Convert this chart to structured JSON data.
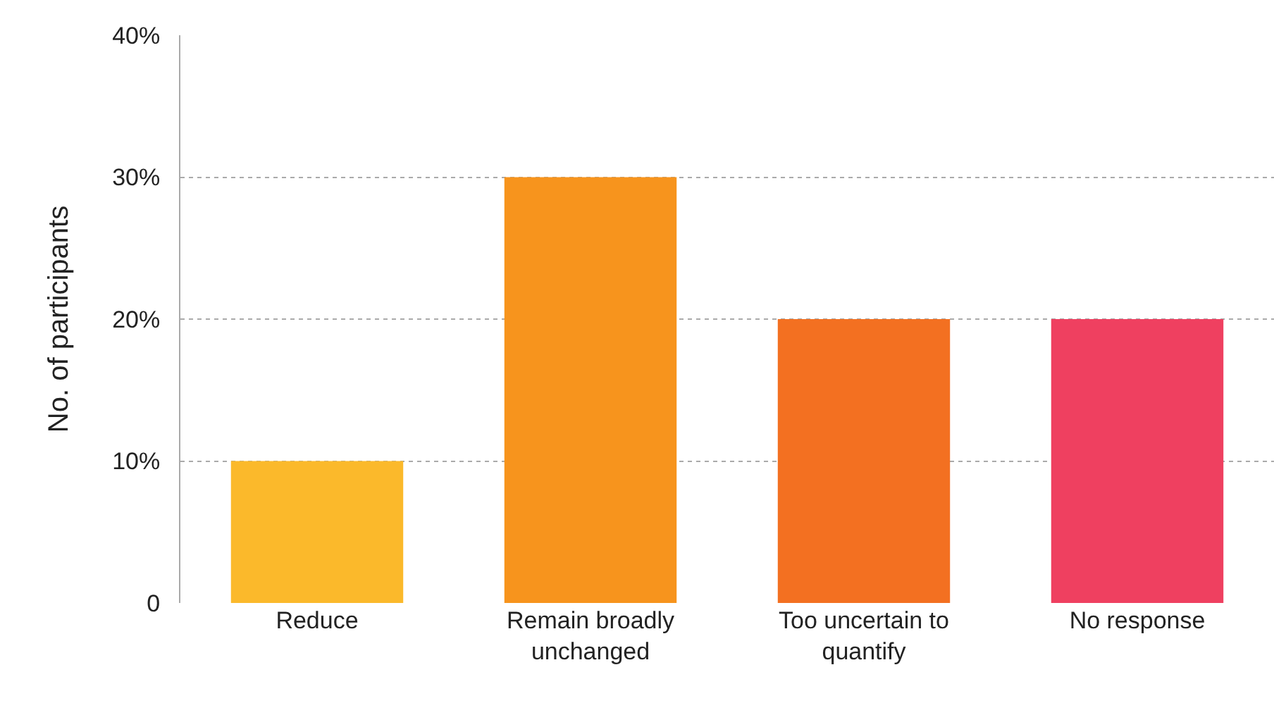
{
  "chart_data": {
    "type": "bar",
    "ylabel": "No. of participants",
    "categories": [
      "Reduce",
      "Remain broadly unchanged",
      "Too uncertain to quantify",
      "No response"
    ],
    "values": [
      10,
      30,
      20,
      20
    ],
    "colors": [
      "#fbb92b",
      "#f7941d",
      "#f37021",
      "#ef4060"
    ],
    "ylim": [
      0,
      40
    ],
    "yticks": [
      0,
      {
        "value": 10,
        "label": "10%"
      },
      {
        "value": 20,
        "label": "20%"
      },
      {
        "value": 30,
        "label": "30%"
      },
      {
        "value": 40,
        "label": "40%"
      }
    ],
    "grid": "y",
    "legend": false
  }
}
